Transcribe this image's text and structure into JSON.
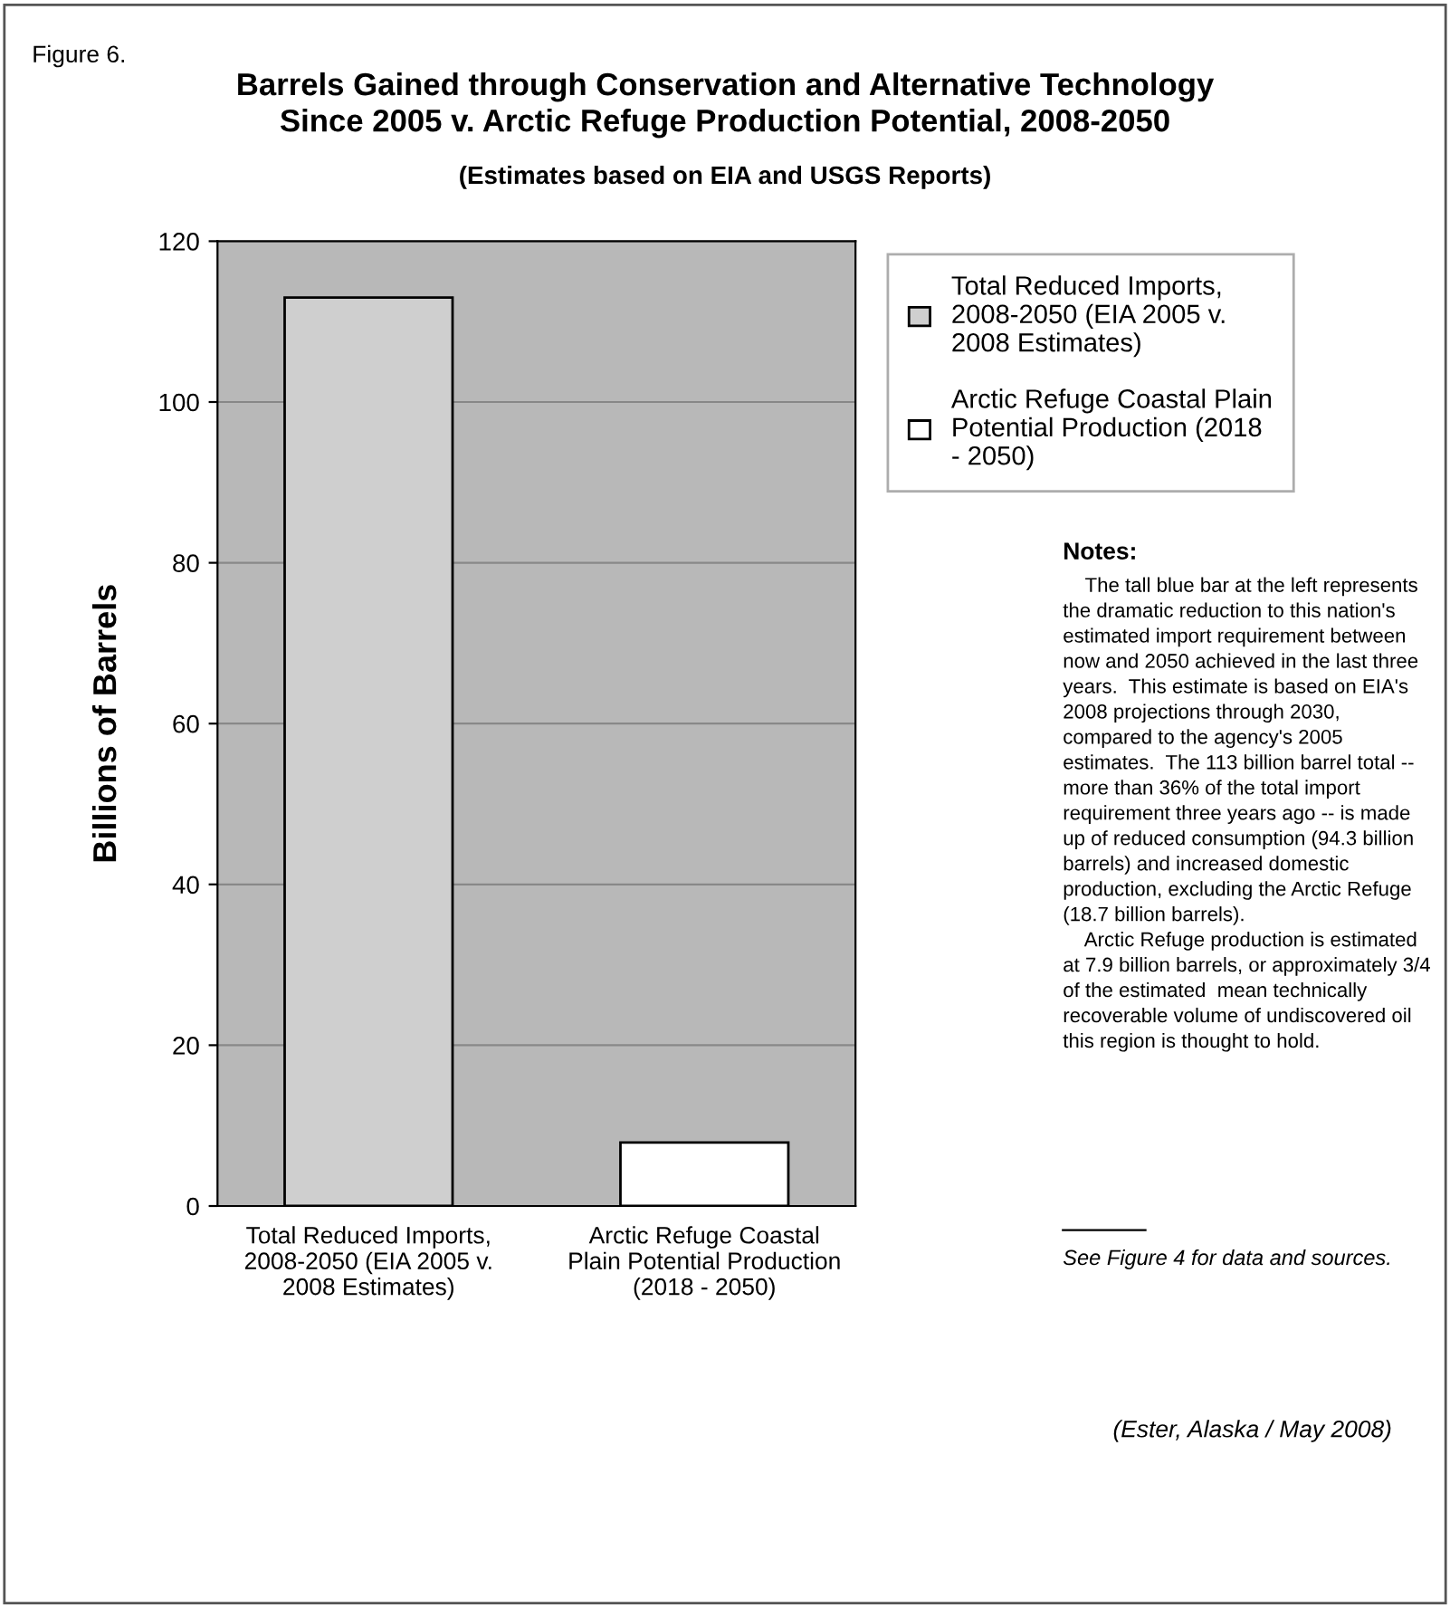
{
  "chart_data": {
    "type": "bar",
    "title": "Barrels Gained through Conservation and Alternative Technology\nSince 2005 v. Arctic Refuge Production Potential, 2008-2050",
    "subtitle": "(Estimates based on EIA and USGS Reports)",
    "ylabel": "Billions of Barrels",
    "categories": [
      "Total Reduced Imports,\n2008-2050 (EIA 2005 v.\n2008 Estimates)",
      "Arctic Refuge Coastal\nPlain Potential Production\n(2018 - 2050)"
    ],
    "series": [
      {
        "name": "Total Reduced Imports,\n2008-2050 (EIA 2005 v.\n2008 Estimates)",
        "color": "#cfcfcf",
        "values": [
          113,
          null
        ]
      },
      {
        "name": "Arctic Refuge Coastal Plain\nPotential Production (2018\n- 2050)",
        "color": "#ffffff",
        "values": [
          null,
          7.9
        ]
      }
    ],
    "stacked": true,
    "ylim": [
      0,
      120
    ],
    "yticks": [
      0,
      20,
      40,
      60,
      80,
      100,
      120
    ],
    "grid": "y",
    "legend": "right",
    "annotations": [
      "Figure 6.",
      "Notes:",
      "    The tall blue bar at the left represents\nthe dramatic reduction to this nation's\nestimated import requirement between\nnow and 2050 achieved in the last three\nyears.  This estimate is based on EIA's\n2008 projections through 2030,\ncompared to the agency's 2005\nestimates.  The 113 billion barrel total --\nmore than 36% of the total import\nrequirement three years ago -- is made\nup of reduced consumption (94.3 billion\nbarrels) and increased domestic\nproduction, excluding the Arctic Refuge\n(18.7 billion barrels).\n    Arctic Refuge production is estimated\nat 7.9 billion barrels, or approximately 3/4\nof the estimated  mean technically\nrecoverable volume of undiscovered oil\nthis region is thought to hold.",
      "See Figure 4 for data and sources.",
      "(Ester, Alaska / May 2008)"
    ]
  }
}
